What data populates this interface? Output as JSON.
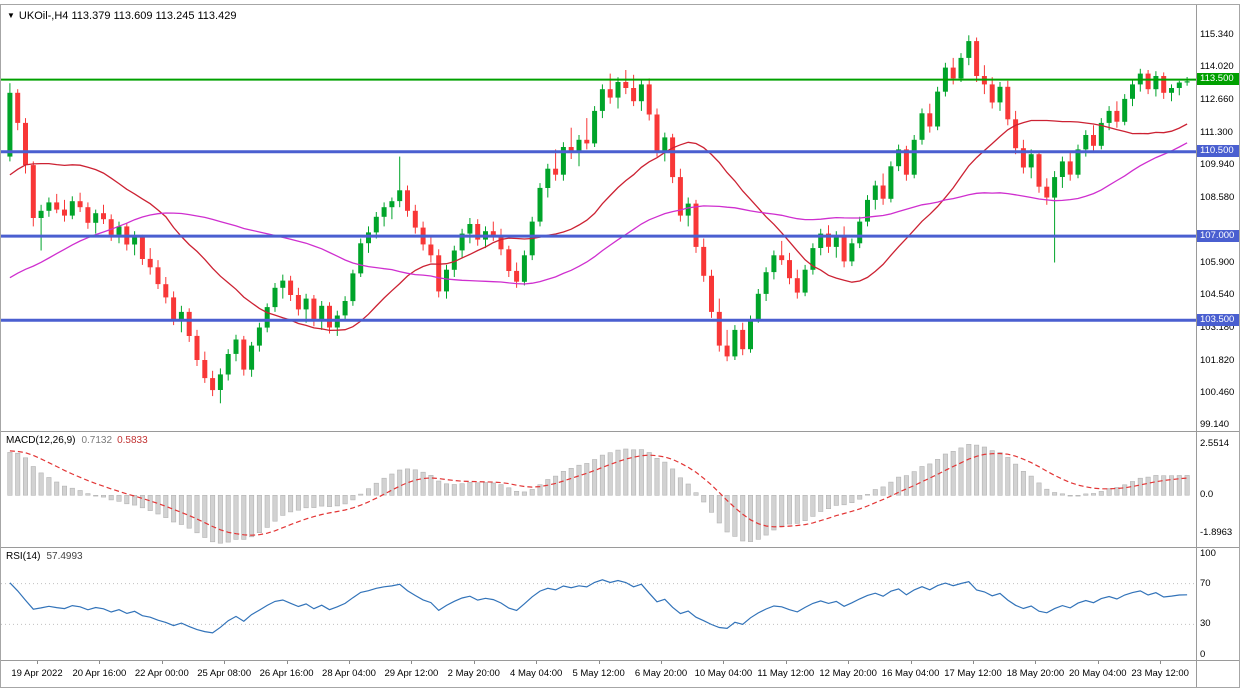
{
  "window": {
    "dropdown_icon": "▼",
    "symbol_label": "UKOil-,H4",
    "ohlc_label": "113.379 113.609 113.245 113.429"
  },
  "colors": {
    "candle_up": "#00a42a",
    "candle_down": "#f83737",
    "ma_fast": "#cc2233",
    "ma_slow": "#cf2fcf",
    "hline_blue": "#4a5fd0",
    "hline_green": "#00a000",
    "macd_hist_fill": "#d2d2d2",
    "macd_hist_stroke": "#b3b3b3",
    "macd_signal": "#e23535",
    "rsi_line": "#3273b9",
    "rsi_level": "#c0c0c0",
    "text": "#000000"
  },
  "chart_data": {
    "type": "candlestick",
    "symbol": "UKOil-",
    "timeframe": "H4",
    "last_ohlc": {
      "open": 113.379,
      "high": 113.609,
      "low": 113.245,
      "close": 113.429
    },
    "price_scale": {
      "min": 98.9,
      "max": 116.6,
      "ticks": [
        "115.340",
        "114.020",
        "112.660",
        "111.300",
        "109.940",
        "108.580",
        "105.900",
        "104.540",
        "103.180",
        "101.820",
        "100.460",
        "99.140"
      ]
    },
    "hlines": [
      {
        "price": 113.5,
        "label": "113.500",
        "style": "green"
      },
      {
        "price": 110.5,
        "label": "110.500",
        "style": "blue"
      },
      {
        "price": 107.0,
        "label": "107.000",
        "style": "blue"
      },
      {
        "price": 103.5,
        "label": "103.500",
        "style": "blue"
      }
    ],
    "ma_fast": {
      "period": 21
    },
    "ma_slow": {
      "period": 50
    },
    "warmup_closes": [
      104.2,
      104.8,
      105.3,
      104.6,
      103.9,
      103.2,
      102.5,
      101.8,
      101.0,
      100.2,
      99.5,
      99.0,
      98.8,
      99.3,
      100.1,
      100.8,
      101.5,
      102.2,
      101.6,
      100.9,
      100.3,
      99.8,
      100.5,
      101.4,
      102.3,
      103.1,
      103.8,
      104.5,
      105.2,
      104.7,
      104.0,
      104.9,
      105.8,
      106.5,
      107.2,
      106.8,
      106.1,
      106.9,
      107.8,
      108.4,
      109.0,
      108.5,
      107.9,
      108.6,
      109.3,
      110.0,
      110.8,
      111.5,
      112.1,
      111.6,
      111.0,
      110.4,
      109.9,
      110.5,
      110.3
    ],
    "candles": [
      [
        110.3,
        113.35,
        110.1,
        112.95
      ],
      [
        112.95,
        113.1,
        111.4,
        111.7
      ],
      [
        111.7,
        111.9,
        109.6,
        109.95
      ],
      [
        109.95,
        110.1,
        107.4,
        107.75
      ],
      [
        107.75,
        108.3,
        106.4,
        108.05
      ],
      [
        108.05,
        108.6,
        107.8,
        108.4
      ],
      [
        108.4,
        108.75,
        107.95,
        108.1
      ],
      [
        108.1,
        108.5,
        107.6,
        107.85
      ],
      [
        107.85,
        108.65,
        107.7,
        108.45
      ],
      [
        108.45,
        108.8,
        108.0,
        108.2
      ],
      [
        108.2,
        108.4,
        107.3,
        107.55
      ],
      [
        107.55,
        108.1,
        107.1,
        107.95
      ],
      [
        107.95,
        108.3,
        107.5,
        107.7
      ],
      [
        107.7,
        107.9,
        106.8,
        107.05
      ],
      [
        107.05,
        107.6,
        106.7,
        107.4
      ],
      [
        107.4,
        107.55,
        106.4,
        106.65
      ],
      [
        106.65,
        107.2,
        106.2,
        106.95
      ],
      [
        106.95,
        107.05,
        105.8,
        106.05
      ],
      [
        106.05,
        106.5,
        105.4,
        105.7
      ],
      [
        105.7,
        106.0,
        104.8,
        105.0
      ],
      [
        105.0,
        105.3,
        104.2,
        104.45
      ],
      [
        104.45,
        104.7,
        103.3,
        103.55
      ],
      [
        103.55,
        104.1,
        103.0,
        103.85
      ],
      [
        103.85,
        104.0,
        102.6,
        102.85
      ],
      [
        102.85,
        103.1,
        101.6,
        101.85
      ],
      [
        101.85,
        102.2,
        100.9,
        101.1
      ],
      [
        101.1,
        101.4,
        100.35,
        100.6
      ],
      [
        100.6,
        101.5,
        100.05,
        101.25
      ],
      [
        101.25,
        102.3,
        101.0,
        102.1
      ],
      [
        102.1,
        102.9,
        101.8,
        102.7
      ],
      [
        102.7,
        102.85,
        101.2,
        101.45
      ],
      [
        101.45,
        102.6,
        101.15,
        102.45
      ],
      [
        102.45,
        103.4,
        102.2,
        103.2
      ],
      [
        103.2,
        104.2,
        103.0,
        104.05
      ],
      [
        104.05,
        105.05,
        103.85,
        104.85
      ],
      [
        104.85,
        105.4,
        104.4,
        105.15
      ],
      [
        105.15,
        105.35,
        104.3,
        104.55
      ],
      [
        104.55,
        104.85,
        103.7,
        103.95
      ],
      [
        103.95,
        104.6,
        103.4,
        104.4
      ],
      [
        104.4,
        104.55,
        103.25,
        103.5
      ],
      [
        103.5,
        104.3,
        103.1,
        104.1
      ],
      [
        104.1,
        104.25,
        102.95,
        103.2
      ],
      [
        103.2,
        103.9,
        102.85,
        103.7
      ],
      [
        103.7,
        104.5,
        103.5,
        104.3
      ],
      [
        104.3,
        105.6,
        104.1,
        105.45
      ],
      [
        105.45,
        106.9,
        105.3,
        106.7
      ],
      [
        106.7,
        107.4,
        106.3,
        107.15
      ],
      [
        107.15,
        108.0,
        106.9,
        107.8
      ],
      [
        107.8,
        108.4,
        107.4,
        108.2
      ],
      [
        108.2,
        108.6,
        107.7,
        108.45
      ],
      [
        108.45,
        110.3,
        108.2,
        108.9
      ],
      [
        108.9,
        109.1,
        107.8,
        108.05
      ],
      [
        108.05,
        108.3,
        107.1,
        107.35
      ],
      [
        107.35,
        107.6,
        106.4,
        106.65
      ],
      [
        106.65,
        107.0,
        105.9,
        106.2
      ],
      [
        106.2,
        106.45,
        104.45,
        104.7
      ],
      [
        104.7,
        105.8,
        104.4,
        105.6
      ],
      [
        105.6,
        106.6,
        105.3,
        106.4
      ],
      [
        106.4,
        107.3,
        106.1,
        107.1
      ],
      [
        107.1,
        107.75,
        106.7,
        107.5
      ],
      [
        107.5,
        107.7,
        106.6,
        106.85
      ],
      [
        106.85,
        107.4,
        106.5,
        107.2
      ],
      [
        107.2,
        107.6,
        106.8,
        107.0
      ],
      [
        107.0,
        107.3,
        106.2,
        106.45
      ],
      [
        106.45,
        106.6,
        105.3,
        105.55
      ],
      [
        105.55,
        105.9,
        104.85,
        105.1
      ],
      [
        105.1,
        106.4,
        104.95,
        106.2
      ],
      [
        106.2,
        107.8,
        106.0,
        107.6
      ],
      [
        107.6,
        109.2,
        107.4,
        109.0
      ],
      [
        109.0,
        110.0,
        108.6,
        109.8
      ],
      [
        109.8,
        110.6,
        109.3,
        109.55
      ],
      [
        109.55,
        110.9,
        109.3,
        110.7
      ],
      [
        110.7,
        111.5,
        110.2,
        110.45
      ],
      [
        110.45,
        111.2,
        109.9,
        111.0
      ],
      [
        111.0,
        111.9,
        110.6,
        110.85
      ],
      [
        110.85,
        112.4,
        110.7,
        112.2
      ],
      [
        112.2,
        113.3,
        111.9,
        113.1
      ],
      [
        113.1,
        113.75,
        112.5,
        112.75
      ],
      [
        112.75,
        113.6,
        112.3,
        113.4
      ],
      [
        113.4,
        113.9,
        112.9,
        113.15
      ],
      [
        113.15,
        113.7,
        112.4,
        112.6
      ],
      [
        112.6,
        113.5,
        112.2,
        113.3
      ],
      [
        113.3,
        113.55,
        111.8,
        112.05
      ],
      [
        112.05,
        112.3,
        110.3,
        110.55
      ],
      [
        110.55,
        111.3,
        110.1,
        111.1
      ],
      [
        111.1,
        111.25,
        109.2,
        109.45
      ],
      [
        109.45,
        109.8,
        107.6,
        107.85
      ],
      [
        107.85,
        108.6,
        107.4,
        108.35
      ],
      [
        108.35,
        108.5,
        106.3,
        106.55
      ],
      [
        106.55,
        106.9,
        105.1,
        105.35
      ],
      [
        105.35,
        105.6,
        103.6,
        103.85
      ],
      [
        103.85,
        104.4,
        102.2,
        102.45
      ],
      [
        102.45,
        103.1,
        101.8,
        102.0
      ],
      [
        102.0,
        103.3,
        101.85,
        103.1
      ],
      [
        103.1,
        103.4,
        102.05,
        102.3
      ],
      [
        102.3,
        103.7,
        102.15,
        103.55
      ],
      [
        103.55,
        104.8,
        103.4,
        104.6
      ],
      [
        104.6,
        105.7,
        104.3,
        105.5
      ],
      [
        105.5,
        106.4,
        105.2,
        106.2
      ],
      [
        106.2,
        106.8,
        105.8,
        106.0
      ],
      [
        106.0,
        106.3,
        105.0,
        105.25
      ],
      [
        105.25,
        105.6,
        104.4,
        104.65
      ],
      [
        104.65,
        105.8,
        104.5,
        105.6
      ],
      [
        105.6,
        106.7,
        105.4,
        106.5
      ],
      [
        106.5,
        107.3,
        106.2,
        107.1
      ],
      [
        107.1,
        107.45,
        106.3,
        106.55
      ],
      [
        106.55,
        107.2,
        106.1,
        107.0
      ],
      [
        107.0,
        107.4,
        105.7,
        105.95
      ],
      [
        105.95,
        106.9,
        105.75,
        106.7
      ],
      [
        106.7,
        107.8,
        106.5,
        107.6
      ],
      [
        107.6,
        108.7,
        107.4,
        108.5
      ],
      [
        108.5,
        109.3,
        108.1,
        109.1
      ],
      [
        109.1,
        109.6,
        108.3,
        108.55
      ],
      [
        108.55,
        110.1,
        108.4,
        109.9
      ],
      [
        109.9,
        110.8,
        109.7,
        110.6
      ],
      [
        110.6,
        110.75,
        109.3,
        109.55
      ],
      [
        109.55,
        111.2,
        109.4,
        111.0
      ],
      [
        111.0,
        112.3,
        110.8,
        112.1
      ],
      [
        112.1,
        112.5,
        111.3,
        111.55
      ],
      [
        111.55,
        113.2,
        111.4,
        113.0
      ],
      [
        113.0,
        114.2,
        112.8,
        114.0
      ],
      [
        114.0,
        114.4,
        113.3,
        113.55
      ],
      [
        113.55,
        114.6,
        113.4,
        114.4
      ],
      [
        114.4,
        115.34,
        114.1,
        115.1
      ],
      [
        115.1,
        115.25,
        113.4,
        113.65
      ],
      [
        113.65,
        114.1,
        112.9,
        113.3
      ],
      [
        113.3,
        113.6,
        112.3,
        112.55
      ],
      [
        112.55,
        113.4,
        112.2,
        113.2
      ],
      [
        113.2,
        113.45,
        111.6,
        111.85
      ],
      [
        111.85,
        112.2,
        110.4,
        110.65
      ],
      [
        110.65,
        111.0,
        109.6,
        109.85
      ],
      [
        109.85,
        110.6,
        109.4,
        110.4
      ],
      [
        110.4,
        110.55,
        108.8,
        109.05
      ],
      [
        109.05,
        109.4,
        108.3,
        108.6
      ],
      [
        108.6,
        109.7,
        105.9,
        109.45
      ],
      [
        109.45,
        110.3,
        109.0,
        110.1
      ],
      [
        110.1,
        110.45,
        109.3,
        109.55
      ],
      [
        109.55,
        110.8,
        109.4,
        110.6
      ],
      [
        110.6,
        111.4,
        110.3,
        111.2
      ],
      [
        111.2,
        111.6,
        110.5,
        110.75
      ],
      [
        110.75,
        111.9,
        110.6,
        111.7
      ],
      [
        111.7,
        112.4,
        111.4,
        112.2
      ],
      [
        112.2,
        112.6,
        111.5,
        111.75
      ],
      [
        111.75,
        112.9,
        111.6,
        112.7
      ],
      [
        112.7,
        113.5,
        112.4,
        113.3
      ],
      [
        113.3,
        113.95,
        113.0,
        113.75
      ],
      [
        113.75,
        113.9,
        112.9,
        113.1
      ],
      [
        113.1,
        113.85,
        112.8,
        113.65
      ],
      [
        113.65,
        113.8,
        112.7,
        112.95
      ],
      [
        112.95,
        113.3,
        112.6,
        113.15
      ],
      [
        113.15,
        113.45,
        112.85,
        113.38
      ],
      [
        113.379,
        113.609,
        113.245,
        113.429
      ]
    ],
    "macd": {
      "label": "MACD(12,26,9)",
      "value_main": "0.7132",
      "value_signal": "0.5833",
      "scale_ref": 2.5514,
      "ticks": [
        {
          "v": 2.5514,
          "label": "2.5514"
        },
        {
          "v": 0,
          "label": "0.0"
        },
        {
          "v": -1.8963,
          "label": "-1.8963"
        }
      ]
    },
    "rsi": {
      "label": "RSI(14)",
      "value": "57.4993",
      "period": 14,
      "levels": [
        70,
        30
      ],
      "ticks": [
        {
          "v": 100,
          "label": "100"
        },
        {
          "v": 70,
          "label": "70"
        },
        {
          "v": 30,
          "label": "30"
        },
        {
          "v": 0,
          "label": "0"
        }
      ]
    },
    "time_axis": {
      "labels": [
        "19 Apr 2022",
        "20 Apr 16:00",
        "22 Apr 00:00",
        "25 Apr 08:00",
        "26 Apr 16:00",
        "28 Apr 04:00",
        "29 Apr 12:00",
        "2 May 20:00",
        "4 May 04:00",
        "5 May 12:00",
        "6 May 20:00",
        "10 May 04:00",
        "11 May 12:00",
        "12 May 20:00",
        "16 May 04:00",
        "17 May 12:00",
        "18 May 20:00",
        "20 May 04:00",
        "23 May 12:00"
      ]
    }
  }
}
